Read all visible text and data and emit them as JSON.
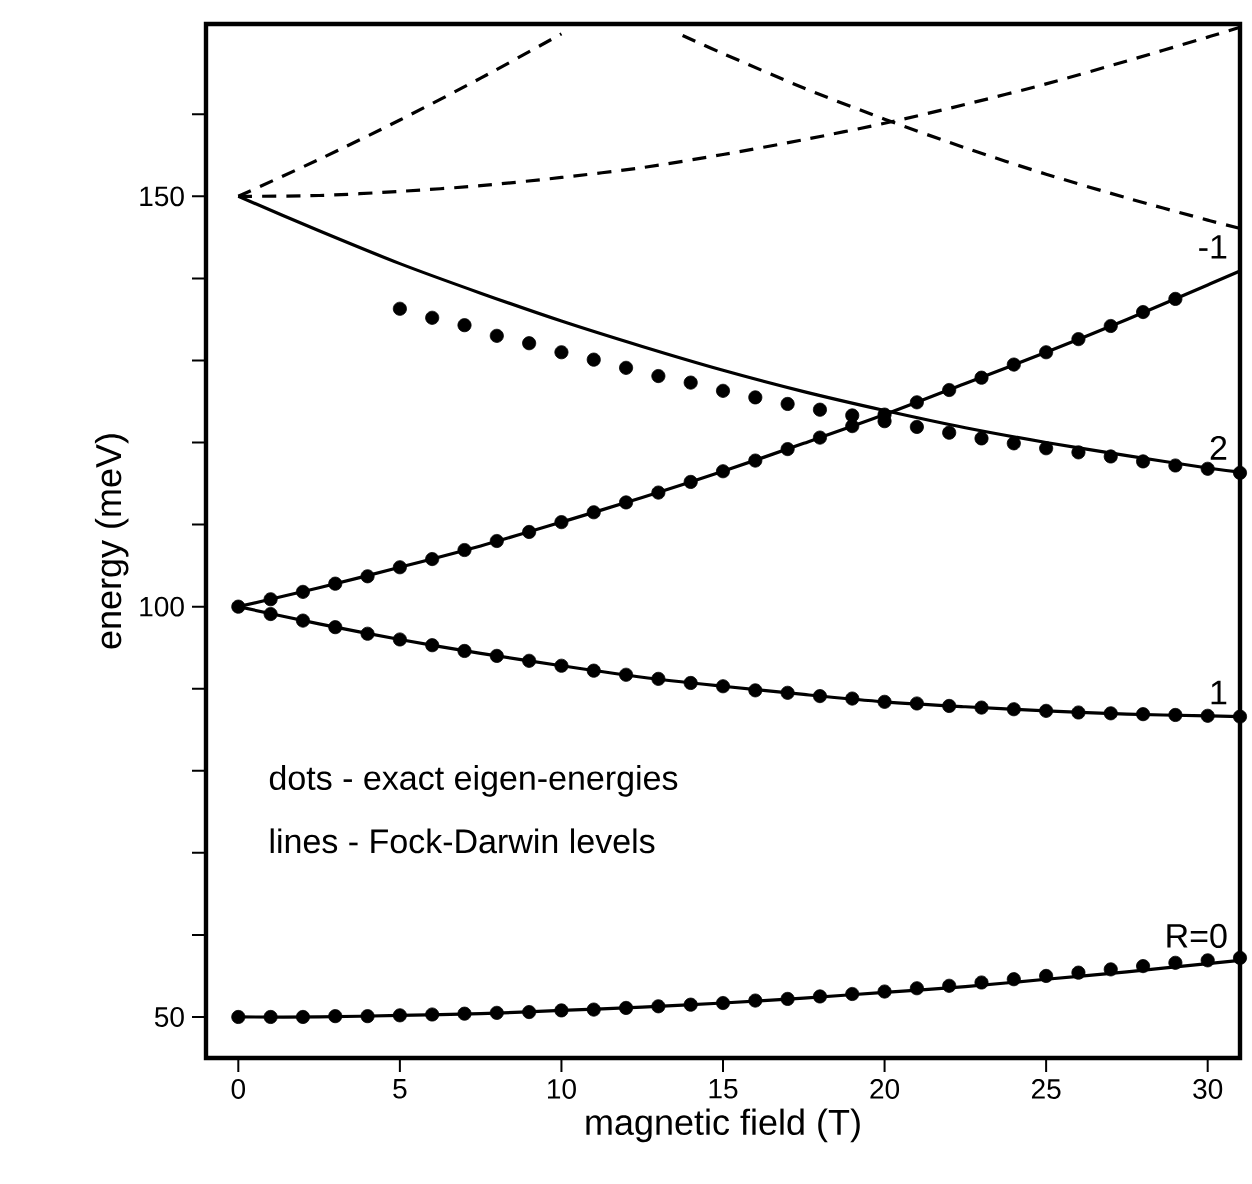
{
  "chart_data": {
    "type": "line",
    "xlabel": "magnetic field (T)",
    "ylabel": "energy (meV)",
    "xlim": [
      -1,
      31
    ],
    "ylim": [
      45,
      171
    ],
    "xticks": [
      0,
      5,
      10,
      15,
      20,
      25,
      30
    ],
    "yticks": [
      50,
      {
        "value": 60,
        "label": null
      },
      {
        "value": 70,
        "label": null
      },
      {
        "value": 80,
        "label": null
      },
      {
        "value": 90,
        "label": null
      },
      100,
      {
        "value": 110,
        "label": null
      },
      {
        "value": 120,
        "label": null
      },
      {
        "value": 130,
        "label": null
      },
      {
        "value": 140,
        "label": null
      },
      150,
      {
        "value": 160,
        "label": null
      }
    ],
    "annotations": [
      "dots - exact eigen-energies",
      "lines - Fock-Darwin levels"
    ],
    "series": [
      {
        "name": "R=0",
        "color": "#000000",
        "line_style": "solid",
        "marker": "none",
        "x": [
          0,
          2.5,
          5,
          7.5,
          10,
          12.5,
          15,
          17.5,
          20,
          22.5,
          25,
          27.5,
          30,
          31
        ],
        "values": [
          50,
          50,
          50.2,
          50.4,
          50.8,
          51.2,
          51.7,
          52.3,
          53,
          53.7,
          54.6,
          55.5,
          56.5,
          56.9
        ]
      },
      {
        "name": "1",
        "color": "#000000",
        "line_style": "solid",
        "marker": "none",
        "x": [
          0,
          2.5,
          5,
          7.5,
          10,
          12.5,
          15,
          17.5,
          20,
          22.5,
          25,
          27.5,
          30,
          31
        ],
        "values": [
          100,
          97.9,
          96.0,
          94.3,
          92.8,
          91.4,
          90.3,
          89.3,
          88.4,
          87.8,
          87.3,
          86.9,
          86.7,
          86.6
        ]
      },
      {
        "name": "-1",
        "color": "#000000",
        "line_style": "solid",
        "marker": "none",
        "x": [
          0,
          2.5,
          5,
          7.5,
          10,
          12.5,
          15,
          17.5,
          20,
          22.5,
          25,
          27.5,
          30,
          31
        ],
        "values": [
          100,
          102.3,
          104.8,
          107.4,
          110.3,
          113.3,
          116.5,
          119.9,
          123.4,
          127.2,
          131.0,
          135.0,
          139.2,
          140.9
        ]
      },
      {
        "name": "2",
        "color": "#000000",
        "line_style": "solid",
        "marker": "none",
        "x": [
          0,
          2.5,
          5,
          7.5,
          10,
          12.5,
          15,
          17.5,
          20,
          22.5,
          25,
          27.5,
          30,
          31
        ],
        "values": [
          150,
          145.8,
          141.8,
          138.2,
          134.8,
          131.7,
          128.8,
          126.2,
          123.9,
          121.8,
          120.0,
          118.4,
          116.9,
          116.4
        ]
      },
      {
        "color": "#000000",
        "line_style": "dashed",
        "marker": "none",
        "x": [
          0,
          2.5,
          5,
          7.5,
          10
        ],
        "values": [
          150,
          154.5,
          159.3,
          164.4,
          169.8
        ]
      },
      {
        "color": "#000000",
        "line_style": "dashed",
        "marker": "none",
        "x": [
          0,
          2.5,
          5,
          7.5,
          10,
          12.5,
          15,
          17.5,
          20,
          22.5,
          25,
          27.5,
          30,
          31
        ],
        "values": [
          150,
          150.1,
          150.6,
          151.3,
          152.3,
          153.5,
          155.1,
          156.9,
          158.9,
          161.2,
          163.7,
          166.5,
          169.4,
          170.6
        ]
      },
      {
        "color": "#000000",
        "line_style": "dashed",
        "marker": "none",
        "x": [
          13.75,
          15,
          17.5,
          20,
          22.5,
          25,
          27.5,
          30,
          31
        ],
        "values": [
          169.6,
          167.4,
          163.2,
          159.4,
          155.9,
          152.7,
          149.8,
          147.1,
          146.1
        ]
      },
      {
        "type": "scatter",
        "color": "#000000",
        "marker": "circle",
        "x": [
          0,
          1,
          2,
          3,
          4,
          5,
          6,
          7,
          8,
          9,
          10,
          11,
          12,
          13,
          14,
          15,
          16,
          17,
          18,
          19,
          20,
          21,
          22,
          23,
          24,
          25,
          26,
          27,
          28,
          29,
          30,
          31
        ],
        "values": [
          50.0,
          50.0,
          50.0,
          50.1,
          50.1,
          50.2,
          50.3,
          50.4,
          50.5,
          50.6,
          50.8,
          50.9,
          51.1,
          51.3,
          51.5,
          51.7,
          52.0,
          52.2,
          52.5,
          52.8,
          53.1,
          53.5,
          53.8,
          54.2,
          54.6,
          55.0,
          55.4,
          55.8,
          56.2,
          56.6,
          56.9,
          57.2
        ]
      },
      {
        "type": "scatter",
        "color": "#000000",
        "marker": "circle",
        "x": [
          0,
          1,
          2,
          3,
          4,
          5,
          6,
          7,
          8,
          9,
          10,
          11,
          12,
          13,
          14,
          15,
          16,
          17,
          18,
          19,
          20,
          21,
          22,
          23,
          24,
          25,
          26,
          27,
          28,
          29,
          30,
          31
        ],
        "values": [
          100,
          99.1,
          98.3,
          97.5,
          96.7,
          96.0,
          95.3,
          94.6,
          94.0,
          93.4,
          92.8,
          92.2,
          91.7,
          91.2,
          90.7,
          90.3,
          89.8,
          89.5,
          89.1,
          88.8,
          88.4,
          88.2,
          87.9,
          87.7,
          87.5,
          87.3,
          87.1,
          87.0,
          86.9,
          86.8,
          86.7,
          86.6
        ]
      },
      {
        "type": "scatter",
        "color": "#000000",
        "marker": "circle",
        "x": [
          1,
          2,
          3,
          4,
          5,
          6,
          7,
          8,
          9,
          10,
          11,
          12,
          13,
          14,
          15,
          16,
          17,
          18,
          19,
          20,
          21,
          22,
          23,
          24,
          25,
          26,
          27,
          28,
          29
        ],
        "values": [
          100.9,
          101.8,
          102.8,
          103.7,
          104.8,
          105.8,
          106.9,
          108.0,
          109.1,
          110.3,
          111.5,
          112.7,
          113.9,
          115.2,
          116.5,
          117.8,
          119.2,
          120.6,
          122.0,
          123.4,
          124.9,
          126.4,
          127.9,
          129.5,
          131.0,
          132.6,
          134.2,
          135.9,
          137.5
        ]
      },
      {
        "type": "scatter",
        "color": "#000000",
        "marker": "circle",
        "x": [
          5,
          6,
          7,
          8,
          9,
          10,
          11,
          12,
          13,
          14,
          15,
          16,
          17,
          18,
          19,
          20,
          21,
          22,
          23,
          24,
          25,
          26,
          27,
          28,
          29,
          30,
          31
        ],
        "values": [
          136.3,
          135.2,
          134.3,
          133.0,
          132.1,
          131.0,
          130.1,
          129.1,
          128.1,
          127.3,
          126.3,
          125.5,
          124.7,
          124.0,
          123.3,
          122.6,
          121.9,
          121.2,
          120.5,
          119.9,
          119.3,
          118.8,
          118.3,
          117.7,
          117.2,
          116.8,
          116.3
        ]
      }
    ]
  }
}
